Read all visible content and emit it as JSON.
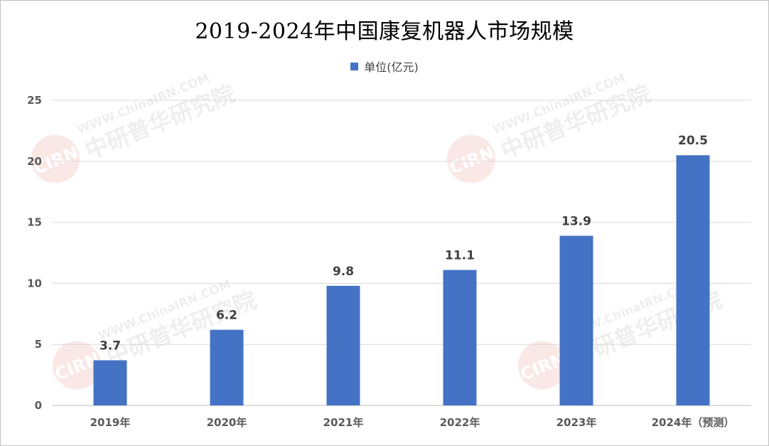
{
  "chart_data": {
    "type": "bar",
    "title": "2019-2024年中国康复机器人市场规模",
    "categories": [
      "2019年",
      "2020年",
      "2021年",
      "2022年",
      "2023年",
      "2024年（预测）"
    ],
    "series": [
      {
        "name": "单位(亿元)",
        "values": [
          3.7,
          6.2,
          9.8,
          11.1,
          13.9,
          20.5
        ],
        "color": "#4472C4"
      }
    ],
    "data_labels": [
      "3.7",
      "6.2",
      "9.8",
      "11.1",
      "13.9",
      "20.5"
    ],
    "yticks": [
      "0",
      "5",
      "10",
      "15",
      "20",
      "25"
    ],
    "ylim": [
      0,
      25
    ],
    "grid": true,
    "legend_position": "top-center"
  },
  "watermark": {
    "text": "WWW.ChinaIRN.COM",
    "org": "中研普华研究院",
    "logo": "CIRN"
  },
  "colors": {
    "bar": "#4472C4",
    "grid": "#d9d9d9",
    "axis_text": "#595959",
    "label_text": "#404040"
  }
}
